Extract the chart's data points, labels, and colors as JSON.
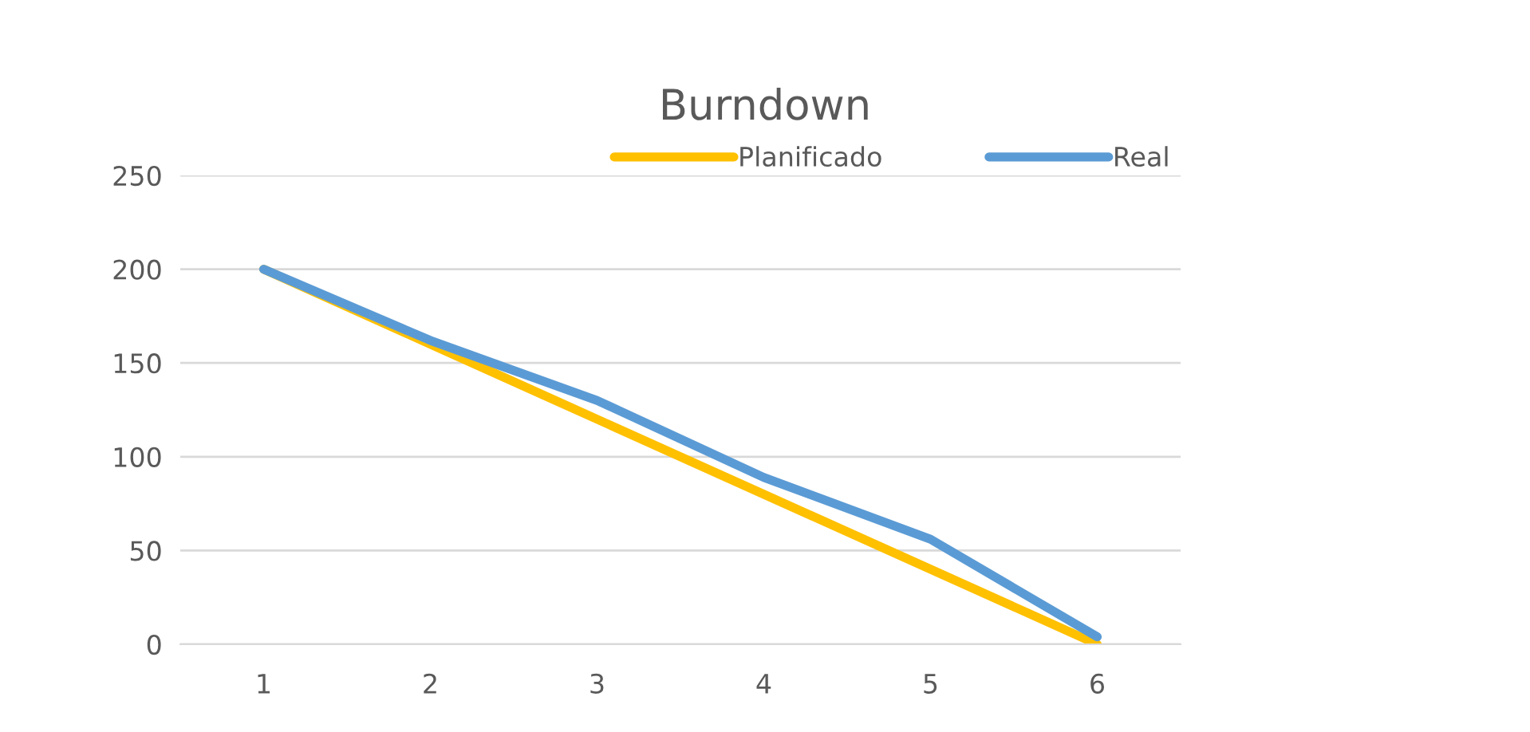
{
  "chart_data": {
    "type": "line",
    "title": "Burndown",
    "categories": [
      "1",
      "2",
      "3",
      "4",
      "5",
      "6"
    ],
    "series": [
      {
        "name": "Planificado",
        "color": "#ffc000",
        "values": [
          200,
          160,
          120,
          80,
          40,
          0
        ]
      },
      {
        "name": "Real",
        "color": "#5b9bd5",
        "values": [
          200,
          162,
          130,
          89,
          56,
          4
        ]
      }
    ],
    "ylim": [
      0,
      250
    ],
    "yticks": [
      0,
      50,
      100,
      150,
      200,
      250
    ],
    "grid": "y",
    "legend": "top right",
    "marker": "none",
    "line_style": "solid"
  }
}
